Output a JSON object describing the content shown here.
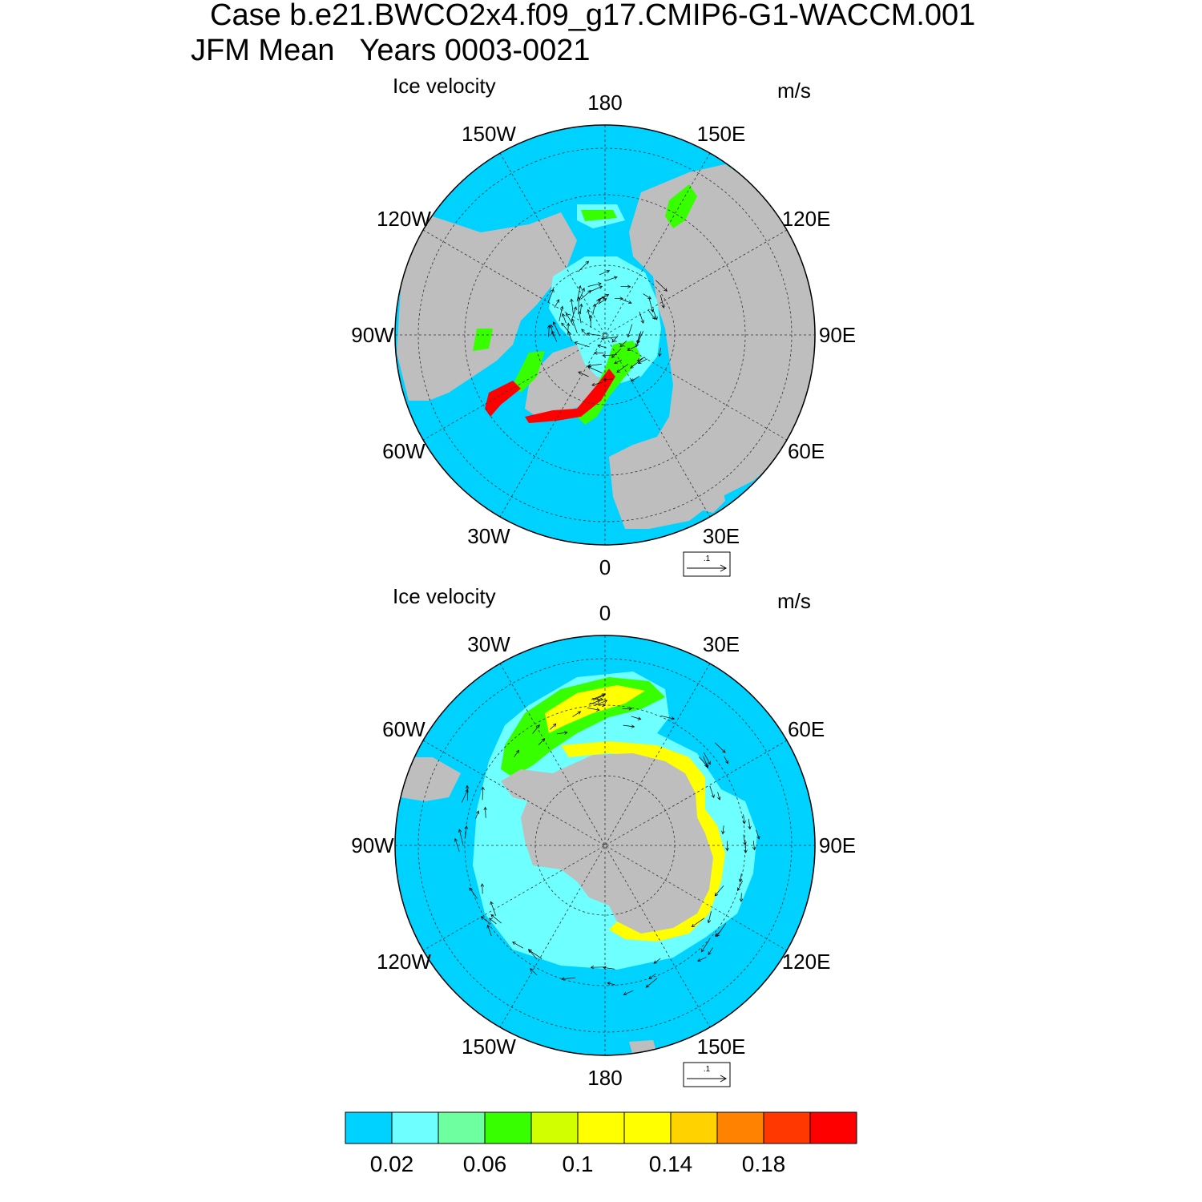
{
  "title": {
    "line1": "Case b.e21.BWCO2x4.f09_g17.CMIP6-G1-WACCM.001",
    "line2": "JFM Mean   Years 0003-0021"
  },
  "panels": [
    {
      "hemisphere": "north",
      "field_label": "Ice velocity",
      "units": "m/s",
      "lon_labels": [
        "180",
        "150E",
        "120E",
        "90E",
        "60E",
        "30E",
        "0",
        "30W",
        "60W",
        "90W",
        "120W",
        "150W"
      ],
      "ref_vector_label": ".1"
    },
    {
      "hemisphere": "south",
      "field_label": "Ice velocity",
      "units": "m/s",
      "lon_labels": [
        "0",
        "30E",
        "60E",
        "90E",
        "120E",
        "150E",
        "180",
        "150W",
        "120W",
        "90W",
        "60W",
        "30W"
      ],
      "ref_vector_label": ".1"
    }
  ],
  "colorbar": {
    "colors": [
      "#00d2ff",
      "#6effff",
      "#6effa0",
      "#37ff00",
      "#d2ff00",
      "#ffff00",
      "#ffff00",
      "#ffd200",
      "#ff8200",
      "#ff3700",
      "#ff0000"
    ],
    "tick_labels": [
      "0.02",
      "0.06",
      "0.1",
      "0.14",
      "0.18"
    ],
    "tick_values": [
      0.02,
      0.06,
      0.1,
      0.14,
      0.18
    ]
  },
  "map_colors": {
    "ocean": "#00d2ff",
    "land": "#bebebe"
  }
}
